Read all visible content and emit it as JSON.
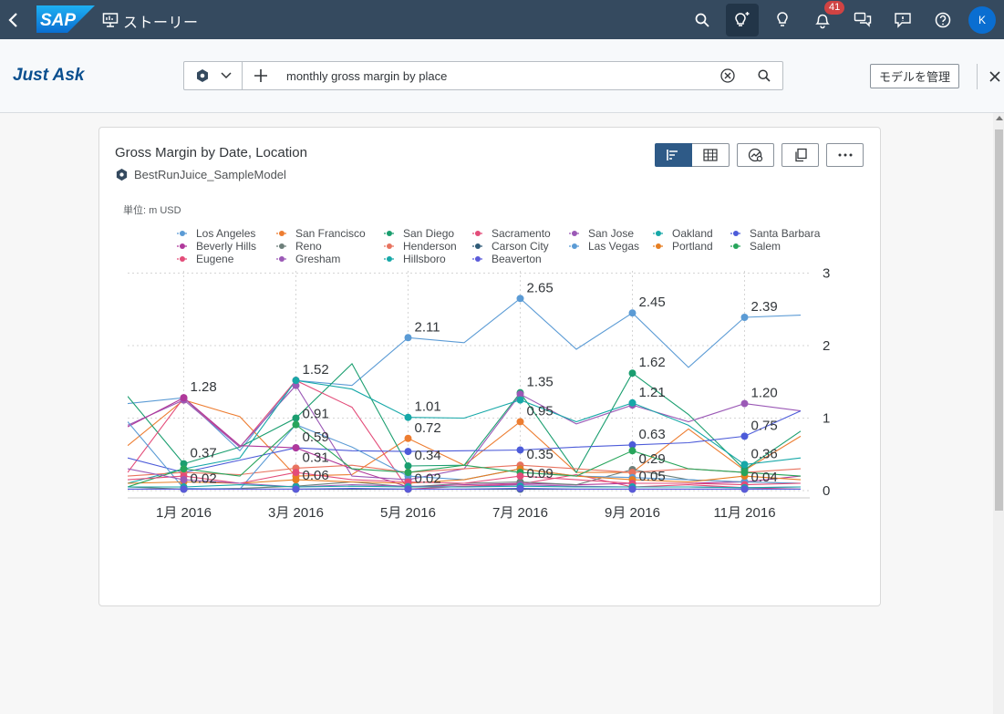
{
  "shell": {
    "logo": "SAP",
    "title": "ストーリー",
    "notification_count": "41",
    "avatar_initial": "K"
  },
  "toolbar": {
    "brand": "Just Ask",
    "query": "monthly gross margin by place",
    "manage_label": "モデルを管理"
  },
  "card": {
    "title": "Gross Margin by Date, Location",
    "model": "BestRunJuice_SampleModel",
    "unit": "単位: m USD"
  },
  "colors": {
    "shell_bg": "#354a5f",
    "accent": "#0a6ed1",
    "brand_text": "#0a4f8f"
  },
  "chart_data": {
    "type": "line",
    "x_ticks": [
      "1月 2016",
      "3月 2016",
      "5月 2016",
      "7月 2016",
      "9月 2016",
      "11月 2016"
    ],
    "y_ticks": [
      "0",
      "1",
      "2",
      "3"
    ],
    "ylim": [
      0,
      3
    ],
    "grid": true,
    "legend_position": "top",
    "legend": [
      {
        "name": "Los Angeles",
        "color": "#5b9bd5"
      },
      {
        "name": "San Francisco",
        "color": "#ed7d31"
      },
      {
        "name": "San Diego",
        "color": "#1a9e6f"
      },
      {
        "name": "Sacramento",
        "color": "#e34c79"
      },
      {
        "name": "San Jose",
        "color": "#9b59b6"
      },
      {
        "name": "Oakland",
        "color": "#17a8a8"
      },
      {
        "name": "Santa Barbara",
        "color": "#4c5bd9"
      },
      {
        "name": "Beverly Hills",
        "color": "#b0399b"
      },
      {
        "name": "Reno",
        "color": "#6d7f7a"
      },
      {
        "name": "Henderson",
        "color": "#e8735f"
      },
      {
        "name": "Carson City",
        "color": "#2f5b77"
      },
      {
        "name": "Las Vegas",
        "color": "#5b9bd5"
      },
      {
        "name": "Portland",
        "color": "#e67e22"
      },
      {
        "name": "Salem",
        "color": "#27a55b"
      },
      {
        "name": "Eugene",
        "color": "#e34c79"
      },
      {
        "name": "Gresham",
        "color": "#9b59b6"
      },
      {
        "name": "Hillsboro",
        "color": "#17a8a8"
      },
      {
        "name": "Beaverton",
        "color": "#5b5bd9"
      }
    ],
    "x": [
      0,
      1,
      2,
      3,
      4,
      5,
      6,
      7,
      8,
      9,
      10,
      11,
      12
    ],
    "series": [
      {
        "name": "Los Angeles",
        "color": "#5b9bd5",
        "values": [
          1.2,
          1.28,
          0.55,
          1.52,
          1.45,
          2.11,
          2.04,
          2.65,
          1.95,
          2.45,
          1.7,
          2.39,
          2.42
        ],
        "labels": {
          "1": "1.28",
          "3": "1.52",
          "5": "2.11",
          "7": "2.65",
          "9": "2.45",
          "11": "2.39"
        }
      },
      {
        "name": "San Francisco",
        "color": "#ed7d31",
        "values": [
          0.62,
          1.25,
          1.02,
          0.2,
          0.22,
          0.72,
          0.35,
          0.95,
          0.25,
          0.25,
          0.85,
          0.28,
          0.75
        ],
        "labels": {
          "5": "0.72",
          "7": "0.95"
        }
      },
      {
        "name": "San Diego",
        "color": "#1a9e6f",
        "values": [
          1.3,
          0.37,
          0.6,
          1.0,
          1.75,
          0.34,
          0.35,
          1.35,
          0.25,
          1.62,
          1.05,
          0.29,
          0.82
        ],
        "labels": {
          "1": "0.37",
          "5": "0.34",
          "7": "1.35",
          "9": "1.62"
        }
      },
      {
        "name": "Sacramento",
        "color": "#e34c79",
        "values": [
          0.25,
          1.28,
          0.6,
          1.52,
          1.15,
          0.02,
          0.06,
          0.09,
          0.22,
          0.05,
          0.08,
          0.04,
          0.02
        ],
        "labels": {
          "5": "0.02",
          "7": "0.09",
          "9": "0.05",
          "11": "0.04"
        }
      },
      {
        "name": "San Jose",
        "color": "#9b59b6",
        "values": [
          0.9,
          1.25,
          0.6,
          1.45,
          0.2,
          0.15,
          0.3,
          1.33,
          0.92,
          1.18,
          0.95,
          1.2,
          1.1
        ],
        "labels": {
          "11": "1.20"
        }
      },
      {
        "name": "Oakland",
        "color": "#17a8a8",
        "values": [
          0.1,
          0.3,
          0.45,
          1.52,
          1.4,
          1.01,
          1.0,
          1.25,
          0.95,
          1.21,
          0.9,
          0.36,
          0.45
        ],
        "labels": {
          "5": "1.01",
          "9": "1.21",
          "11": "0.36"
        }
      },
      {
        "name": "Santa Barbara",
        "color": "#4c5bd9",
        "values": [
          0.45,
          0.25,
          0.42,
          0.59,
          0.55,
          0.54,
          0.55,
          0.56,
          0.6,
          0.63,
          0.66,
          0.75,
          1.1
        ],
        "labels": {
          "3": "0.59",
          "9": "0.63",
          "11": "0.75"
        }
      },
      {
        "name": "Beverly Hills",
        "color": "#b0399b",
        "values": [
          0.88,
          1.28,
          0.62,
          0.59,
          0.3,
          0.05,
          0.08,
          0.1,
          0.08,
          0.1,
          0.1,
          0.12,
          0.2
        ],
        "labels": {}
      },
      {
        "name": "Reno",
        "color": "#6d7f7a",
        "values": [
          0.05,
          0.02,
          0.03,
          0.06,
          0.12,
          0.05,
          0.1,
          0.12,
          0.08,
          0.29,
          0.15,
          0.12,
          0.1
        ],
        "labels": {
          "1": "0.02",
          "3": "0.06",
          "9": "0.29"
        }
      },
      {
        "name": "Henderson",
        "color": "#e8735f",
        "values": [
          0.2,
          0.25,
          0.22,
          0.31,
          0.35,
          0.25,
          0.3,
          0.35,
          0.3,
          0.25,
          0.3,
          0.25,
          0.3
        ],
        "labels": {
          "3": "0.31",
          "7": "0.35"
        }
      },
      {
        "name": "Carson City",
        "color": "#2f5b77",
        "values": [
          0.02,
          0.02,
          0.02,
          0.02,
          0.02,
          0.02,
          0.02,
          0.02,
          0.02,
          0.02,
          0.02,
          0.02,
          0.02
        ],
        "labels": {}
      },
      {
        "name": "Las Vegas",
        "color": "#5b9bd5",
        "values": [
          0.95,
          0.03,
          0.02,
          0.91,
          0.6,
          0.2,
          0.15,
          0.3,
          0.2,
          0.18,
          0.15,
          0.12,
          0.1
        ],
        "labels": {
          "3": "0.91"
        }
      },
      {
        "name": "Portland",
        "color": "#e67e22",
        "values": [
          0.1,
          0.12,
          0.1,
          0.15,
          0.12,
          0.1,
          0.15,
          0.3,
          0.2,
          0.15,
          0.12,
          0.2,
          0.15
        ],
        "labels": {}
      },
      {
        "name": "Salem",
        "color": "#27a55b",
        "values": [
          0.05,
          0.3,
          0.2,
          0.91,
          0.3,
          0.25,
          0.35,
          0.25,
          0.2,
          0.55,
          0.3,
          0.25,
          0.2
        ],
        "labels": {}
      },
      {
        "name": "Eugene",
        "color": "#e34c79",
        "values": [
          0.15,
          0.2,
          0.1,
          0.25,
          0.15,
          0.12,
          0.1,
          0.2,
          0.15,
          0.1,
          0.1,
          0.08,
          0.1
        ],
        "labels": {}
      },
      {
        "name": "Gresham",
        "color": "#9b59b6",
        "values": [
          0.3,
          0.15,
          0.1,
          0.05,
          0.08,
          0.06,
          0.05,
          0.08,
          0.06,
          0.05,
          0.05,
          0.04,
          0.05
        ],
        "labels": {}
      },
      {
        "name": "Hillsboro",
        "color": "#17a8a8",
        "values": [
          0.05,
          0.05,
          0.08,
          0.05,
          0.06,
          0.05,
          0.05,
          0.06,
          0.05,
          0.05,
          0.05,
          0.04,
          0.05
        ],
        "labels": {}
      },
      {
        "name": "Beaverton",
        "color": "#5b5bd9",
        "values": [
          0.02,
          0.02,
          0.02,
          0.02,
          0.03,
          0.02,
          0.02,
          0.03,
          0.02,
          0.02,
          0.02,
          0.02,
          0.02
        ],
        "labels": {}
      }
    ]
  }
}
